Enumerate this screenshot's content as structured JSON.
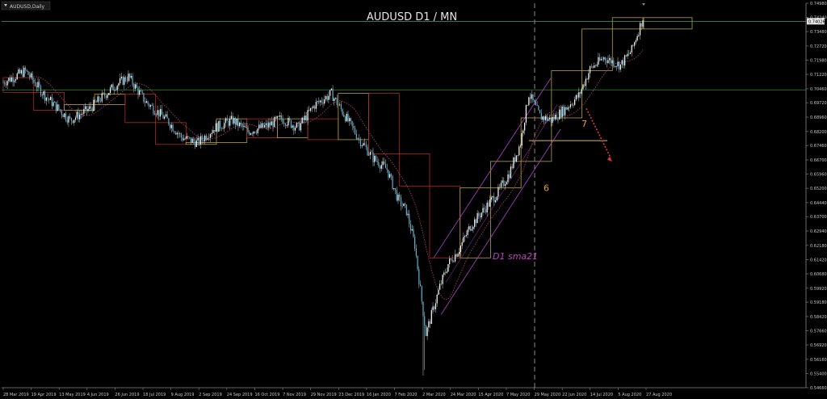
{
  "window": {
    "tab_label": "AUDUSD,Daily"
  },
  "chart_data": {
    "type": "candlestick",
    "title": "AUDUSD D1 / MN",
    "symbol": "AUDUSD",
    "timeframe": "Daily",
    "ylim": [
      0.5466,
      0.7498
    ],
    "y_ticks": [
      "0.74980",
      "0.74240",
      "0.73480",
      "0.72720",
      "0.71980",
      "0.71220",
      "0.70460",
      "0.69720",
      "0.68960",
      "0.68200",
      "0.67460",
      "0.66700",
      "0.65960",
      "0.65200",
      "0.64440",
      "0.63700",
      "0.62940",
      "0.62180",
      "0.61420",
      "0.60680",
      "0.59920",
      "0.59180",
      "0.58420",
      "0.57660",
      "0.56920",
      "0.56160",
      "0.55400",
      "0.54660"
    ],
    "x_ticks": [
      "28 Mar 2019",
      "19 Apr 2019",
      "13 May 2019",
      "4 Jun 2019",
      "26 Jun 2019",
      "18 Jul 2019",
      "9 Aug 2019",
      "2 Sep 2019",
      "24 Sep 2019",
      "16 Oct 2019",
      "7 Nov 2019",
      "29 Nov 2019",
      "23 Dec 2019",
      "16 Jan 2020",
      "7 Feb 2020",
      "2 Mar 2020",
      "24 Mar 2020",
      "15 Apr 2020",
      "7 May 2020",
      "29 May 2020",
      "22 Jun 2020",
      "14 Jul 2020",
      "5 Aug 2020",
      "27 Aug 2020"
    ],
    "current_price": "0.74026",
    "path_points": [
      [
        0,
        0.708
      ],
      [
        16,
        0.714
      ],
      [
        30,
        0.701
      ],
      [
        48,
        0.688
      ],
      [
        62,
        0.694
      ],
      [
        80,
        0.706
      ],
      [
        90,
        0.711
      ],
      [
        102,
        0.698
      ],
      [
        118,
        0.688
      ],
      [
        128,
        0.679
      ],
      [
        140,
        0.676
      ],
      [
        152,
        0.684
      ],
      [
        165,
        0.688
      ],
      [
        176,
        0.682
      ],
      [
        190,
        0.685
      ],
      [
        200,
        0.689
      ],
      [
        212,
        0.684
      ],
      [
        224,
        0.696
      ],
      [
        236,
        0.702
      ],
      [
        246,
        0.69
      ],
      [
        256,
        0.678
      ],
      [
        266,
        0.668
      ],
      [
        276,
        0.662
      ],
      [
        284,
        0.646
      ],
      [
        290,
        0.64
      ],
      [
        296,
        0.622
      ],
      [
        300,
        0.598
      ],
      [
        304,
        0.575
      ],
      [
        308,
        0.585
      ],
      [
        314,
        0.6
      ],
      [
        320,
        0.612
      ],
      [
        328,
        0.62
      ],
      [
        336,
        0.632
      ],
      [
        346,
        0.641
      ],
      [
        356,
        0.65
      ],
      [
        364,
        0.66
      ],
      [
        372,
        0.676
      ],
      [
        378,
        0.702
      ],
      [
        386,
        0.69
      ],
      [
        394,
        0.688
      ],
      [
        404,
        0.694
      ],
      [
        414,
        0.701
      ],
      [
        422,
        0.715
      ],
      [
        432,
        0.721
      ],
      [
        444,
        0.717
      ],
      [
        452,
        0.725
      ],
      [
        460,
        0.742
      ]
    ],
    "monthly_boxes": [
      {
        "open": 0.7105,
        "close": 0.7027
      },
      {
        "open": 0.7027,
        "close": 0.6932
      },
      {
        "open": 0.6932,
        "close": 0.6962
      },
      {
        "open": 0.6962,
        "close": 0.7017
      },
      {
        "open": 0.7017,
        "close": 0.6867
      },
      {
        "open": 0.6867,
        "close": 0.6752
      },
      {
        "open": 0.6752,
        "close": 0.6762
      },
      {
        "open": 0.6762,
        "close": 0.6887
      },
      {
        "open": 0.6887,
        "close": 0.6787
      },
      {
        "open": 0.6787,
        "close": 0.6887
      },
      {
        "open": 0.6887,
        "close": 0.6777
      },
      {
        "open": 0.6777,
        "close": 0.7022
      },
      {
        "open": 0.7022,
        "close": 0.6702
      },
      {
        "open": 0.6702,
        "close": 0.6532
      },
      {
        "open": 0.6532,
        "close": 0.6152
      },
      {
        "open": 0.6152,
        "close": 0.6522
      },
      {
        "open": 0.6522,
        "close": 0.6662
      },
      {
        "open": 0.6662,
        "close": 0.6892
      },
      {
        "open": 0.6892,
        "close": 0.7142
      },
      {
        "open": 0.7142,
        "close": 0.7362
      },
      {
        "open": 0.7362,
        "close": 0.7422
      }
    ],
    "horizontal_lines": [
      {
        "name": "resistance-level",
        "y": 0.704,
        "color": "#2e8b3e"
      },
      {
        "name": "current-price-level",
        "y": 0.7402,
        "color": "#4f9d6a"
      }
    ],
    "vertical_line_x_label": "29 May 2020",
    "annotations": [
      {
        "name": "label-six",
        "text": "6",
        "color": "#e8a23a"
      },
      {
        "name": "label-seven",
        "text": "7",
        "color": "#e8a23a"
      },
      {
        "name": "sma-label",
        "text": "D1 sma21",
        "color": "#c040c0"
      }
    ],
    "colors": {
      "background": "#000000",
      "grid_text": "#c8c8c8",
      "candle": "#5ab4d8",
      "candle_wick": "#cccccc",
      "bull_box": "#b8a040",
      "bear_box": "#b02a2a",
      "channel": "#b040d0",
      "sma": "#a04060",
      "arrow": "#e03a3a",
      "vline": "#888888"
    }
  }
}
